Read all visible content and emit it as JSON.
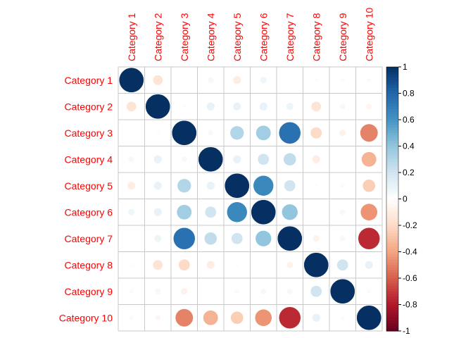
{
  "chart_data": {
    "type": "heatmap",
    "style": "circle",
    "categories": [
      "Category 1",
      "Category 2",
      "Category 3",
      "Category 4",
      "Category 5",
      "Category 6",
      "Category 7",
      "Category 8",
      "Category 9",
      "Category 10"
    ],
    "values": [
      [
        1,
        -0.15,
        0,
        0.05,
        -0.1,
        0.07,
        0,
        -0.02,
        -0.03,
        0.03
      ],
      [
        -0.15,
        1,
        0.02,
        0.1,
        0.1,
        0.1,
        0.08,
        -0.15,
        0.05,
        -0.05
      ],
      [
        0,
        0.02,
        1,
        0.05,
        0.3,
        0.35,
        0.75,
        -0.2,
        -0.07,
        -0.5
      ],
      [
        0.05,
        0.1,
        0.05,
        1,
        0.1,
        0.2,
        0.25,
        -0.1,
        0,
        -0.35
      ],
      [
        -0.1,
        0.1,
        0.3,
        0.1,
        1,
        0.65,
        0.2,
        -0.02,
        0.03,
        -0.25
      ],
      [
        0.07,
        0.1,
        0.35,
        0.2,
        0.65,
        1,
        0.4,
        0,
        0.05,
        -0.45
      ],
      [
        0,
        0.08,
        0.75,
        0.25,
        0.2,
        0.4,
        1,
        -0.07,
        0.05,
        -0.75
      ],
      [
        -0.02,
        -0.15,
        -0.2,
        -0.1,
        -0.02,
        0,
        -0.07,
        1,
        0.2,
        0.1
      ],
      [
        -0.03,
        0.05,
        -0.07,
        0,
        0.03,
        0.05,
        0.05,
        0.2,
        1,
        -0.03
      ],
      [
        0.03,
        -0.05,
        -0.5,
        -0.35,
        -0.25,
        -0.45,
        -0.75,
        0.1,
        -0.03,
        1
      ]
    ],
    "colorbar": {
      "range": [
        -1,
        1
      ],
      "ticks": [
        "-1",
        "-0.8",
        "-0.6",
        "-0.4",
        "-0.2",
        "0",
        "0.2",
        "0.4",
        "0.6",
        "0.8",
        "1"
      ],
      "colors": [
        "#67001F",
        "#B2182B",
        "#D6604D",
        "#F4A582",
        "#FDDBC7",
        "#FFFFFF",
        "#D1E5F0",
        "#92C5DE",
        "#4393C3",
        "#2166AC",
        "#053061"
      ]
    },
    "grid": true,
    "label_color": "#FF0000"
  }
}
